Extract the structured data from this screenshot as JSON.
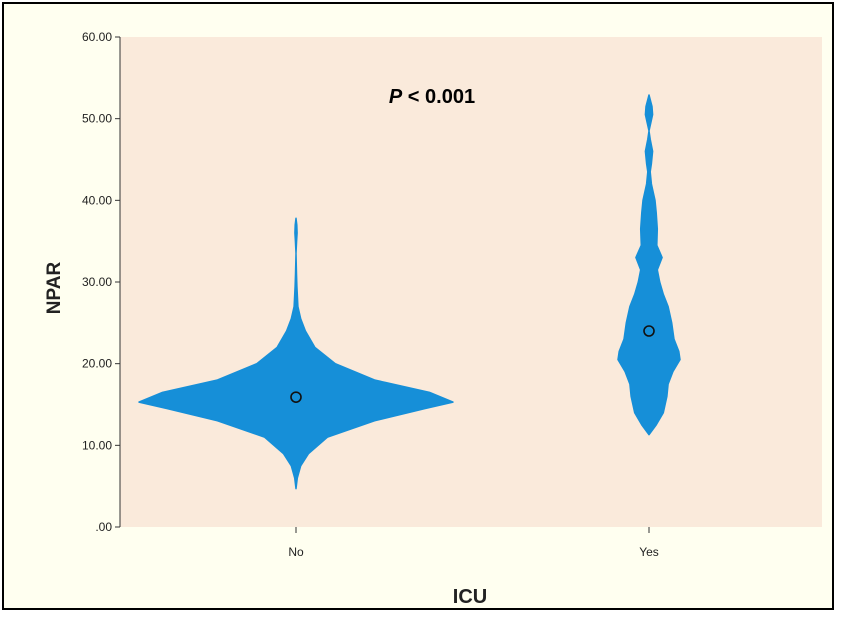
{
  "chart_data": {
    "type": "violin",
    "xlabel": "ICU",
    "ylabel": "NPAR",
    "ylim": [
      0,
      60
    ],
    "yticks": [
      0,
      10,
      20,
      30,
      40,
      50,
      60
    ],
    "ytick_labels": [
      ".00",
      "10.00",
      "20.00",
      "30.00",
      "40.00",
      "50.00",
      "60.00"
    ],
    "categories": [
      "No",
      "Yes"
    ],
    "annotation": {
      "p_symbol": "P",
      "p_text": " < 0.001"
    },
    "groups": [
      {
        "name": "No",
        "median": 15.9,
        "min": 4.7,
        "max": 37.8,
        "density": [
          [
            4.7,
            0.0
          ],
          [
            6.0,
            0.008
          ],
          [
            7.5,
            0.03
          ],
          [
            9.0,
            0.08
          ],
          [
            11.0,
            0.2
          ],
          [
            13.0,
            0.5
          ],
          [
            14.5,
            0.82
          ],
          [
            15.3,
            1.0
          ],
          [
            16.5,
            0.85
          ],
          [
            18.0,
            0.5
          ],
          [
            20.0,
            0.25
          ],
          [
            22.0,
            0.12
          ],
          [
            24.0,
            0.06
          ],
          [
            25.5,
            0.03
          ],
          [
            27.0,
            0.012
          ],
          [
            29.5,
            0.006
          ],
          [
            31.0,
            0.003
          ],
          [
            33.5,
            0.0
          ],
          [
            35.0,
            0.004
          ],
          [
            36.0,
            0.007
          ],
          [
            37.0,
            0.005
          ],
          [
            37.8,
            0.0
          ]
        ]
      },
      {
        "name": "Yes",
        "median": 24.0,
        "min": 11.3,
        "max": 52.9,
        "density": [
          [
            11.3,
            0.0
          ],
          [
            12.5,
            0.012
          ],
          [
            14.0,
            0.024
          ],
          [
            16.0,
            0.03
          ],
          [
            17.5,
            0.032
          ],
          [
            19.0,
            0.04
          ],
          [
            20.5,
            0.052
          ],
          [
            21.5,
            0.05
          ],
          [
            23.0,
            0.042
          ],
          [
            25.0,
            0.038
          ],
          [
            27.0,
            0.032
          ],
          [
            28.5,
            0.024
          ],
          [
            30.0,
            0.018
          ],
          [
            31.5,
            0.014
          ],
          [
            33.0,
            0.022
          ],
          [
            34.5,
            0.013
          ],
          [
            36.5,
            0.014
          ],
          [
            38.5,
            0.012
          ],
          [
            40.0,
            0.01
          ],
          [
            42.0,
            0.004
          ],
          [
            43.5,
            0.002
          ],
          [
            44.5,
            0.004
          ],
          [
            46.0,
            0.006
          ],
          [
            47.5,
            0.002
          ],
          [
            48.5,
            0.0
          ],
          [
            49.5,
            0.003
          ],
          [
            50.5,
            0.006
          ],
          [
            51.5,
            0.005
          ],
          [
            52.9,
            0.0
          ]
        ]
      }
    ],
    "colors": {
      "violin": "#168fd8",
      "plot_bg": "#faeadb",
      "outer_bg": "#fffff0",
      "median_marker": "#111111"
    }
  }
}
